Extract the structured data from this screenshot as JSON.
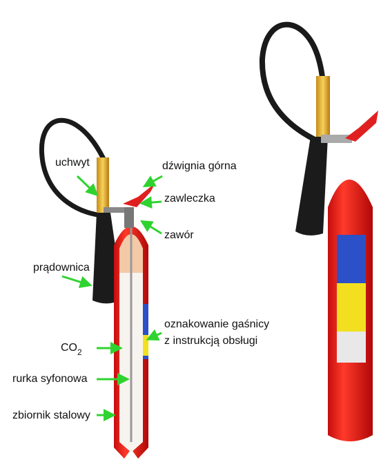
{
  "labels": {
    "handle": "uchwyt",
    "lever": "dźwignia górna",
    "pin": "zawleczka",
    "valve": "zawór",
    "nozzle": "prądownica",
    "marking_line1": "oznakowanie gaśnicy",
    "marking_line2": "z instrukcją obsługi",
    "gas": "CO",
    "gas_subscript": "2",
    "siphon": "rurka syfonowa",
    "tank": "zbiornik stalowy"
  }
}
